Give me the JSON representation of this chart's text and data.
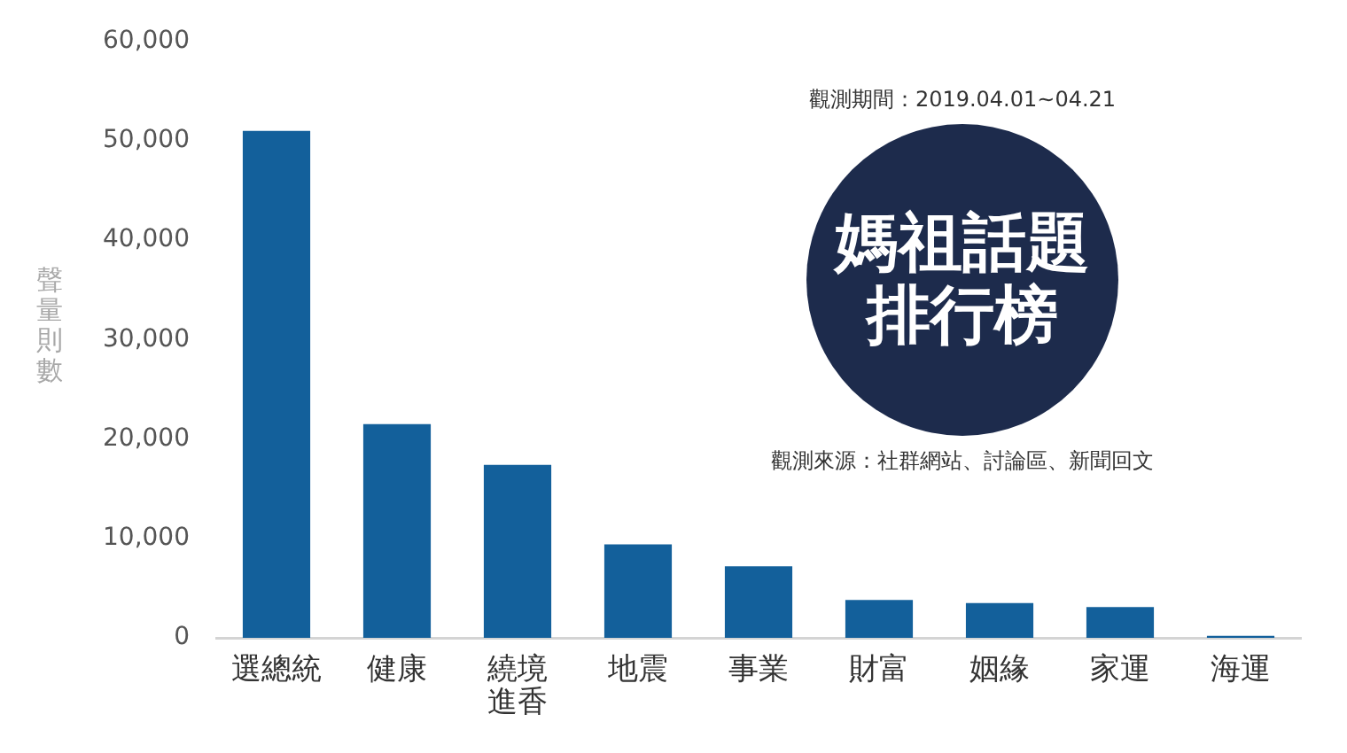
{
  "chart_data": {
    "type": "bar",
    "title": "媽祖話題排行榜",
    "ylabel": "聲量則數",
    "annotations": [
      "觀測期間：2019.04.01~04.21",
      "觀測來源：社群網站、討論區、新聞回文"
    ],
    "categories": [
      "選總統",
      "健康",
      "繞境進香",
      "地震",
      "事業",
      "財富",
      "姻緣",
      "家運",
      "海運"
    ],
    "values": [
      51000,
      21500,
      17400,
      9400,
      7200,
      3800,
      3500,
      3100,
      200
    ],
    "color": "#13609b",
    "ylim": [
      0,
      60000
    ],
    "yticks": [
      0,
      {
        "value": 10000,
        "label": "10,000"
      },
      {
        "value": 20000,
        "label": "20,000"
      },
      {
        "value": 30000,
        "label": "30,000"
      },
      {
        "value": 40000,
        "label": "40,000"
      },
      {
        "value": 50000,
        "label": "50,000"
      },
      {
        "value": 60000,
        "label": "60,000"
      }
    ]
  }
}
